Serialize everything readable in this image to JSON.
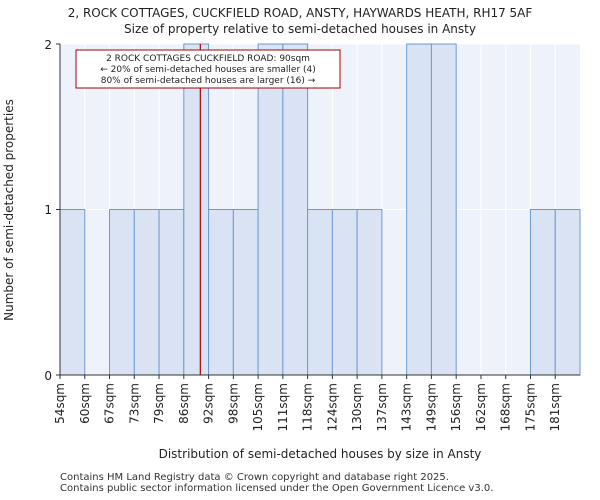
{
  "chart_data": {
    "type": "bar",
    "title": "2, ROCK COTTAGES, CUCKFIELD ROAD, ANSTY, HAYWARDS HEATH, RH17 5AF",
    "subtitle": "Size of property relative to semi-detached houses in Ansty",
    "xlabel": "Distribution of semi-detached houses by size in Ansty",
    "ylabel": "Number of semi-detached properties",
    "categories": [
      "54sqm",
      "60sqm",
      "67sqm",
      "73sqm",
      "79sqm",
      "86sqm",
      "92sqm",
      "98sqm",
      "105sqm",
      "111sqm",
      "118sqm",
      "124sqm",
      "130sqm",
      "137sqm",
      "143sqm",
      "149sqm",
      "156sqm",
      "162sqm",
      "168sqm",
      "175sqm",
      "181sqm"
    ],
    "values": [
      1,
      0,
      1,
      1,
      1,
      2,
      1,
      1,
      2,
      2,
      1,
      1,
      1,
      0,
      2,
      2,
      0,
      0,
      0,
      1,
      1
    ],
    "ylim": [
      0,
      2
    ],
    "yticks": [
      "0",
      "1",
      "2"
    ],
    "grid": true,
    "marker": {
      "value": 90,
      "color": "#aa0000"
    },
    "annotation": {
      "line1": "2 ROCK COTTAGES CUCKFIELD ROAD: 90sqm",
      "line2": "← 20% of semi-detached houses are smaller (4)",
      "line3": "80% of semi-detached houses are larger (16) →"
    },
    "bar_fill": "#dae3f3",
    "bar_stroke": "#6e9ad0",
    "plot_bg": "#eef2fa"
  },
  "footer": {
    "line1": "Contains HM Land Registry data © Crown copyright and database right 2025.",
    "line2": "Contains public sector information licensed under the Open Government Licence v3.0."
  }
}
